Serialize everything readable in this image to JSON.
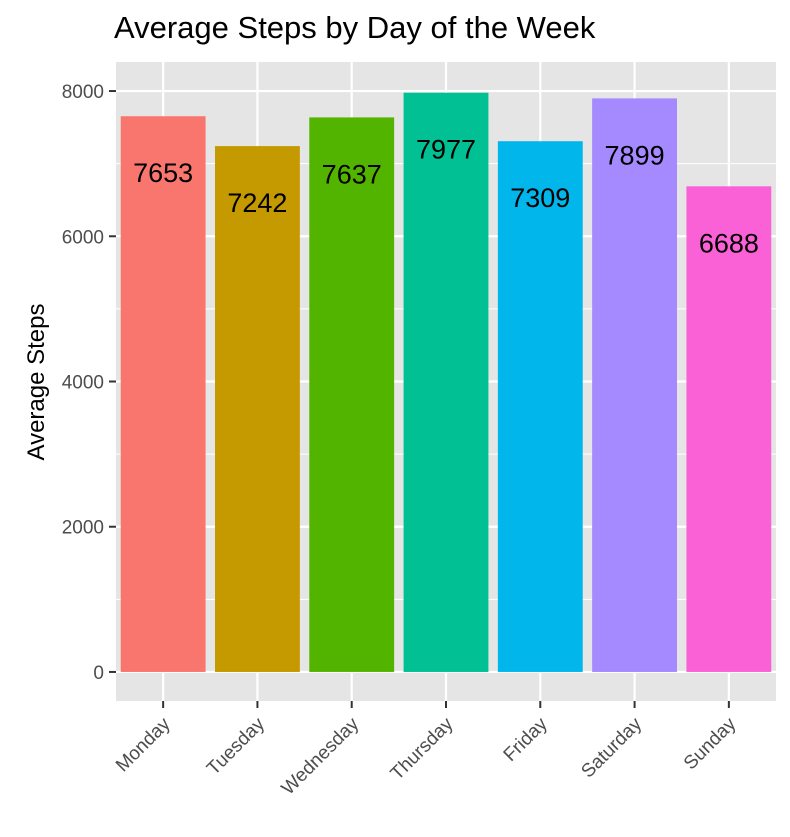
{
  "chart_data": {
    "type": "bar",
    "title": "Average Steps by Day of the Week",
    "xlabel": "",
    "ylabel": "Average Steps",
    "categories": [
      "Monday",
      "Tuesday",
      "Wednesday",
      "Thursday",
      "Friday",
      "Saturday",
      "Sunday"
    ],
    "values": [
      7653,
      7242,
      7637,
      7977,
      7309,
      7899,
      6688
    ],
    "data_labels": [
      "7653",
      "7242",
      "7637",
      "7977",
      "7309",
      "7899",
      "6688"
    ],
    "colors": [
      "#F8766D",
      "#C49A00",
      "#53B400",
      "#00C094",
      "#00B6EB",
      "#A58AFF",
      "#FB61D7"
    ],
    "yticks": [
      0,
      2000,
      4000,
      6000,
      8000
    ],
    "ytick_labels": [
      "0",
      "2000",
      "4000",
      "6000",
      "8000"
    ],
    "ylim": [
      -400,
      8400
    ],
    "panel_background": "#E5E5E5",
    "grid": true,
    "legend": "none"
  }
}
